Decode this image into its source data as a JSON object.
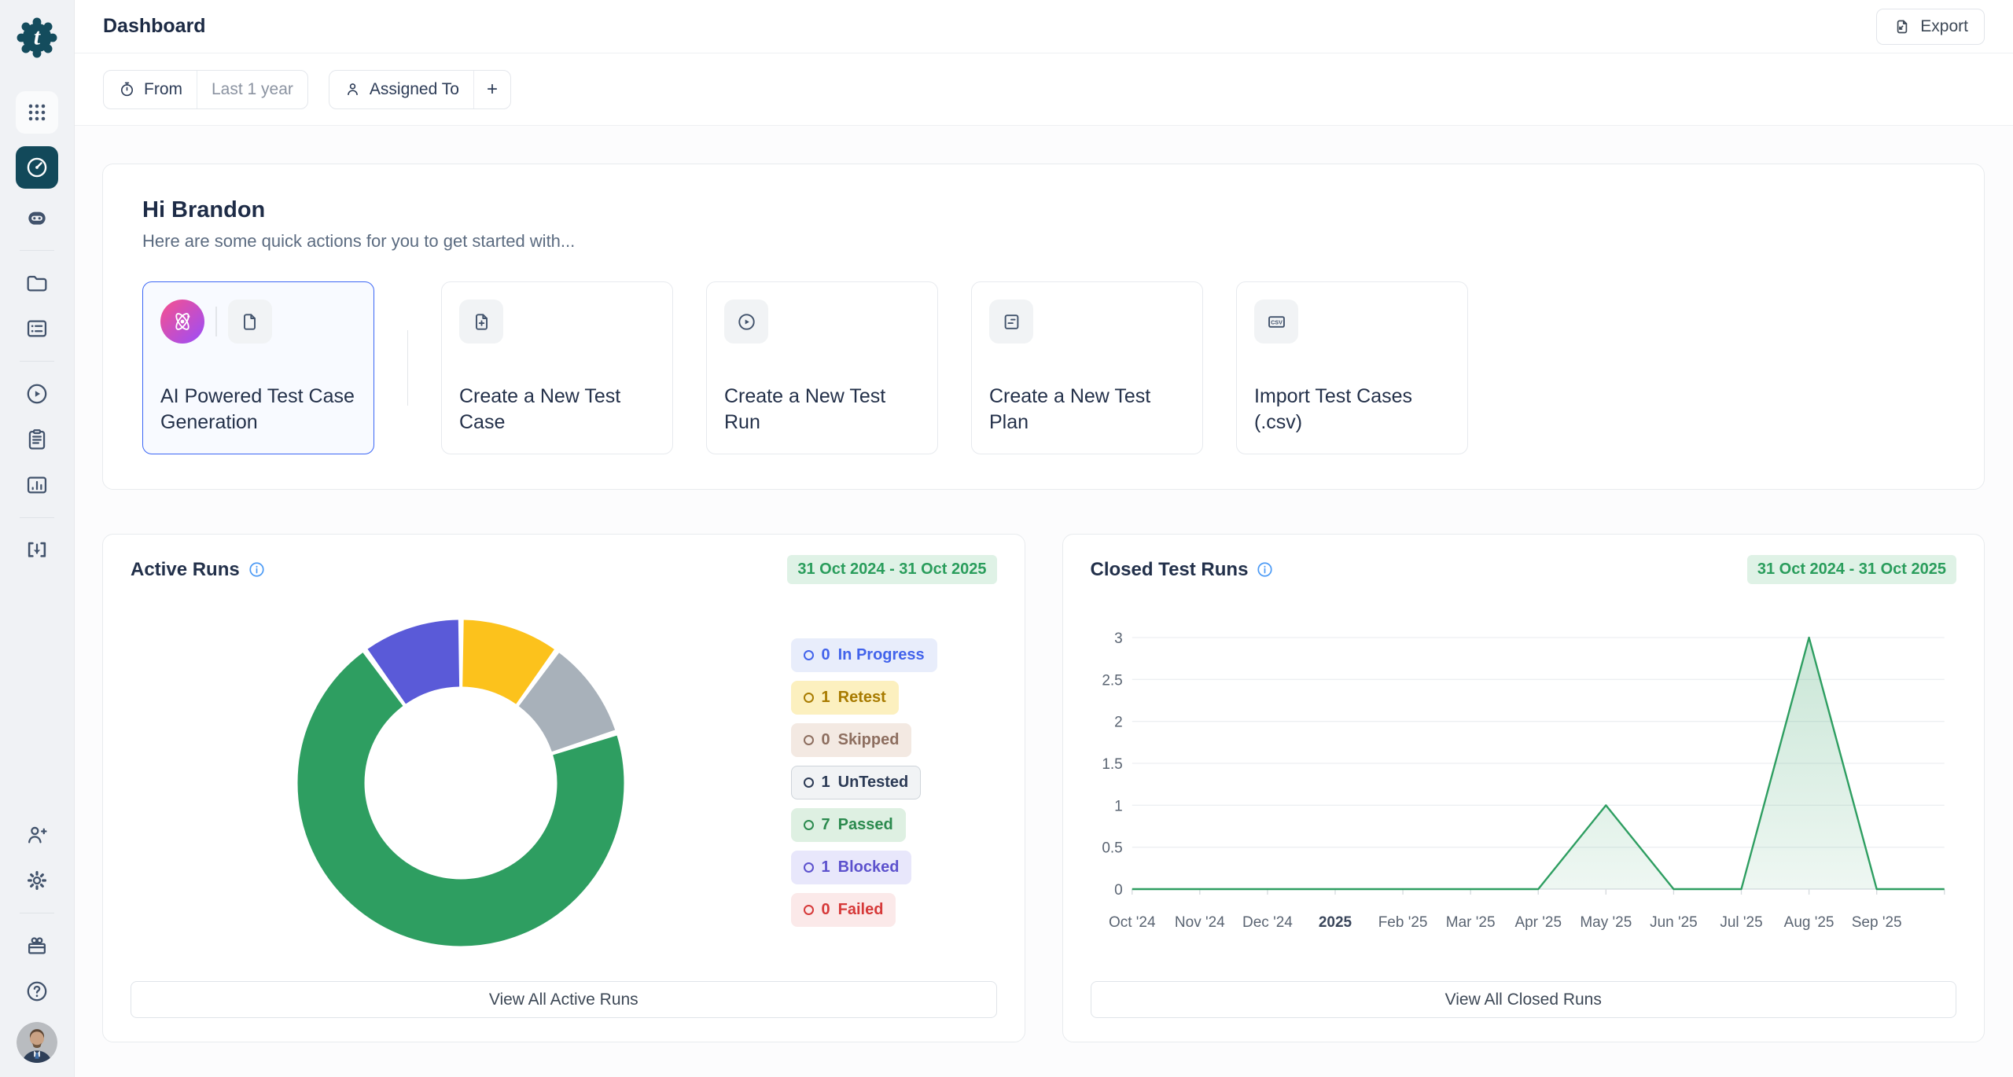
{
  "header": {
    "title": "Dashboard",
    "export_label": "Export"
  },
  "filters": {
    "from_label": "From",
    "from_value": "Last 1 year",
    "assigned_to_label": "Assigned To",
    "add_filter_label": "+"
  },
  "sidebar": {
    "icons": [
      "app-logo",
      "apps-grid",
      "dashboard",
      "ai-bot",
      "projects-folder",
      "test-cases",
      "test-runs",
      "test-plans",
      "reports",
      "import",
      "invite-user",
      "settings",
      "whats-new",
      "help",
      "user-avatar"
    ],
    "active_item": "dashboard"
  },
  "hero": {
    "greeting": "Hi Brandon",
    "subtitle": "Here are some quick actions for you to get started with...",
    "cards": [
      {
        "title": "AI Powered Test Case Generation",
        "icons": [
          "ai-atom-icon",
          "document-icon"
        ],
        "highlighted": true
      },
      {
        "title": "Create a New Test Case",
        "icons": [
          "document-plus-icon"
        ],
        "highlighted": false
      },
      {
        "title": "Create a New Test Run",
        "icons": [
          "play-circle-icon"
        ],
        "highlighted": false
      },
      {
        "title": "Create a New Test Plan",
        "icons": [
          "test-plan-icon"
        ],
        "highlighted": false
      },
      {
        "title": "Import Test Cases (.csv)",
        "icons": [
          "csv-icon"
        ],
        "highlighted": false
      }
    ]
  },
  "active_runs": {
    "title": "Active Runs",
    "date_range": "31 Oct 2024 - 31 Oct 2025",
    "view_all_label": "View All Active Runs",
    "legend": [
      {
        "count": "0",
        "label": "In Progress",
        "color": "#4263eb",
        "bg": "#e8edfb"
      },
      {
        "count": "1",
        "label": "Retest",
        "color": "#a87b00",
        "bg": "#fcf0bf"
      },
      {
        "count": "0",
        "label": "Skipped",
        "color": "#8d6e5f",
        "bg": "#f3e9e2"
      },
      {
        "count": "1",
        "label": "UnTested",
        "color": "#2b3a55",
        "bg": "#f1f3f5",
        "border": "#ced4da"
      },
      {
        "count": "7",
        "label": "Passed",
        "color": "#2b8a4e",
        "bg": "#def0e2"
      },
      {
        "count": "1",
        "label": "Blocked",
        "color": "#5c51cd",
        "bg": "#e8e7fb"
      },
      {
        "count": "0",
        "label": "Failed",
        "color": "#d63939",
        "bg": "#fbe9e9"
      }
    ],
    "chart_data": {
      "type": "pie",
      "donut": true,
      "start_angle": "top",
      "direction": "clockwise",
      "segments": [
        {
          "label": "Retest",
          "value": 1,
          "color": "#fcc21c"
        },
        {
          "label": "UnTested",
          "value": 1,
          "color": "#a8b1ba"
        },
        {
          "label": "Passed",
          "value": 7,
          "color": "#2e9e61"
        },
        {
          "label": "Blocked",
          "value": 1,
          "color": "#5a5ad8"
        }
      ]
    }
  },
  "closed_runs": {
    "title": "Closed Test Runs",
    "date_range": "31 Oct 2024 - 31 Oct 2025",
    "view_all_label": "View All Closed Runs",
    "chart_data": {
      "type": "area",
      "title": "Closed Test Runs per month",
      "x": [
        "Oct '24",
        "Nov '24",
        "Dec '24",
        "2025",
        "Feb '25",
        "Mar '25",
        "Apr '25",
        "May '25",
        "Jun '25",
        "Jul '25",
        "Aug '25",
        "Sep '25",
        ""
      ],
      "values": [
        0,
        0,
        0,
        0,
        0,
        0,
        0,
        1,
        0,
        0,
        3,
        0,
        0
      ],
      "bold_x_label": "2025",
      "ylim": [
        0,
        3
      ],
      "ytick_step": 0.5,
      "grid": true,
      "line_color": "#2e9e61",
      "fill_color": "#2e9e61"
    }
  }
}
